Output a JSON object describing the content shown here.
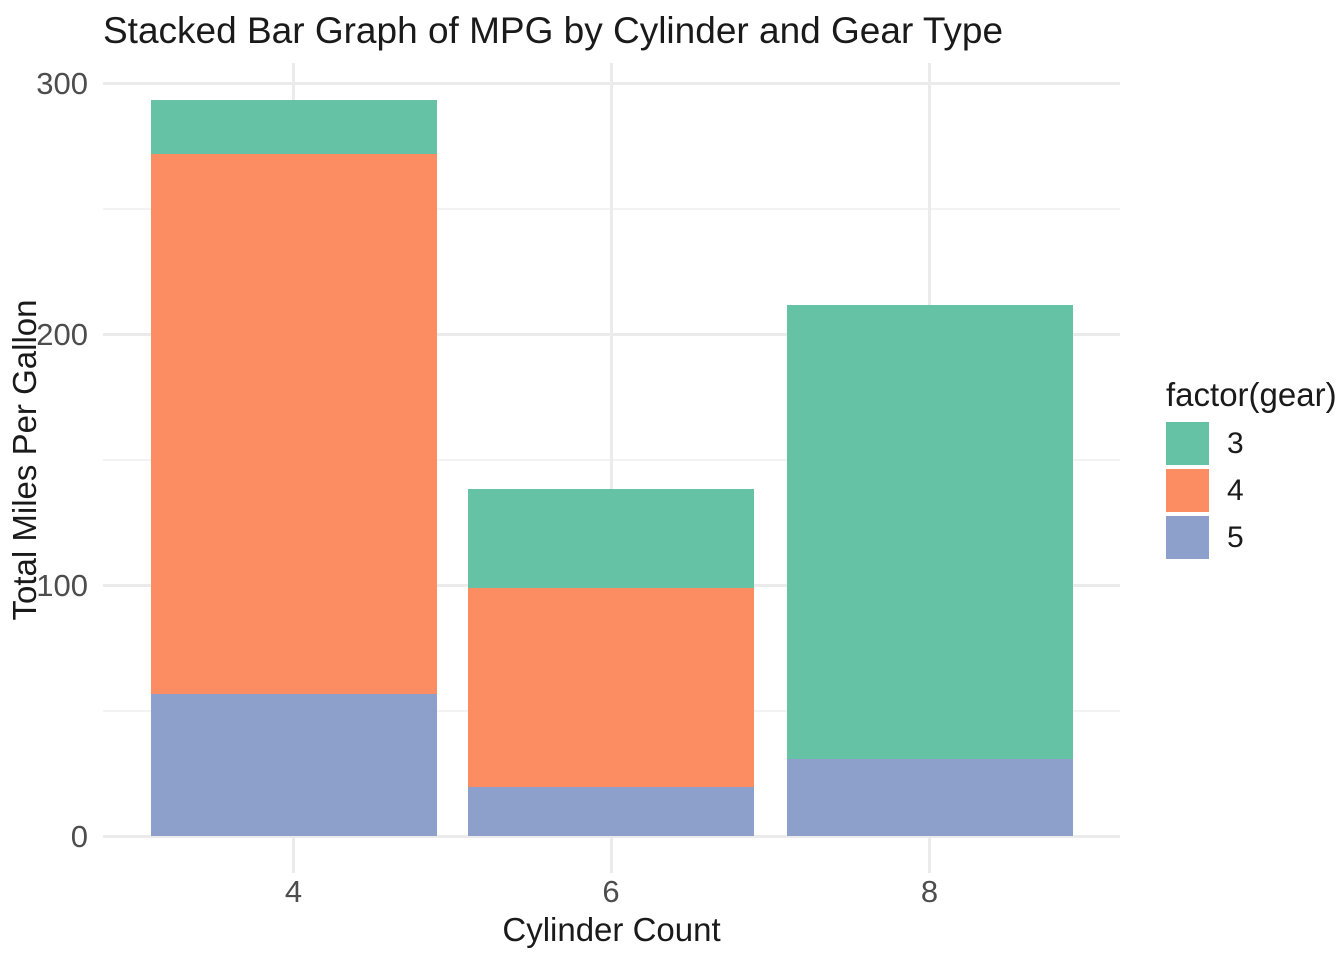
{
  "chart_data": {
    "type": "bar",
    "stacked": true,
    "title": "Stacked Bar Graph of MPG by Cylinder and Gear Type",
    "xlabel": "Cylinder Count",
    "ylabel": "Total Miles Per Gallon",
    "legend_title": "factor(gear)",
    "legend_position": "right",
    "categories": [
      "4",
      "6",
      "8"
    ],
    "series": [
      {
        "name": "3",
        "color": "#66C2A5",
        "values": [
          21.5,
          39.5,
          180.6
        ]
      },
      {
        "name": "4",
        "color": "#FC8D62",
        "values": [
          215.4,
          79.0,
          0
        ]
      },
      {
        "name": "5",
        "color": "#8DA0CB",
        "values": [
          56.4,
          19.7,
          30.8
        ]
      }
    ],
    "stack_order_bottom_to_top": [
      "5",
      "4",
      "3"
    ],
    "stack_totals": [
      293.3,
      138.2,
      211.4
    ],
    "ylim": [
      0,
      300
    ],
    "y_ticks": [
      0,
      100,
      200,
      300
    ],
    "y_minor_ticks": [
      50,
      150,
      250
    ],
    "grid": "major-and-minor, no panel border, white background",
    "colors": {
      "grid_major": "#EBEBEB",
      "grid_minor": "#F3F3F3",
      "tick_text": "#4D4D4D",
      "text": "#1A1A1A",
      "background": "#FFFFFF"
    }
  }
}
